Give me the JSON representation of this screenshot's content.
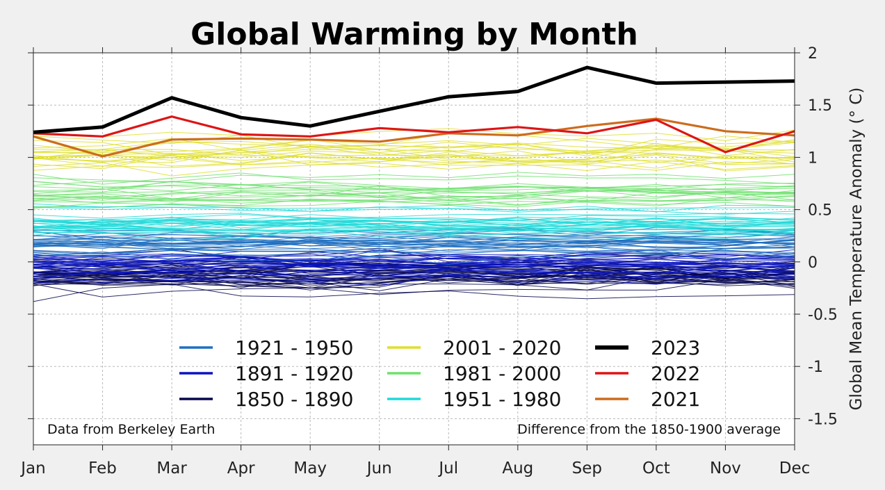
{
  "chart_data": {
    "type": "line",
    "title": "Global Warming by Month",
    "ylabel": "Global Mean Temperature Anomaly (° C)",
    "xlabel": "",
    "categories": [
      "Jan",
      "Feb",
      "Mar",
      "Apr",
      "May",
      "Jun",
      "Jul",
      "Aug",
      "Sep",
      "Oct",
      "Nov",
      "Dec"
    ],
    "ylim": [
      -1.75,
      2.0
    ],
    "yticks": [
      2,
      1.5,
      1,
      0.5,
      0,
      -0.5,
      -1,
      -1.5
    ],
    "ytick_labels": [
      "2",
      "1.5",
      "1",
      "0.5",
      "0",
      "-0.5",
      "-1",
      "-1.5"
    ],
    "y_axis_side": "right",
    "grid": true,
    "legend_placement": "lower-center",
    "annotations": {
      "left": "Data from Berkeley Earth",
      "right": "Difference from the 1850-1900 average"
    },
    "legend": [
      {
        "label": "1921 - 1950",
        "color": "#1f6fc0",
        "bold": false
      },
      {
        "label": "1891 - 1920",
        "color": "#0a14c0",
        "bold": false
      },
      {
        "label": "1850 - 1890",
        "color": "#06064d",
        "bold": false
      },
      {
        "label": "2001 - 2020",
        "color": "#dede2a",
        "bold": false
      },
      {
        "label": "1981 - 2000",
        "color": "#6ee06e",
        "bold": false
      },
      {
        "label": "1951 - 1980",
        "color": "#20d8d8",
        "bold": false
      },
      {
        "label": "2023",
        "color": "#000000",
        "bold": true
      },
      {
        "label": "2022",
        "color": "#dd1515",
        "bold": false
      },
      {
        "label": "2021",
        "color": "#cc6c1c",
        "bold": false
      }
    ],
    "series": [
      {
        "name": "2023",
        "color": "#000000",
        "values": [
          1.24,
          1.29,
          1.57,
          1.38,
          1.3,
          1.44,
          1.58,
          1.63,
          1.86,
          1.71,
          1.72,
          1.73
        ]
      },
      {
        "name": "2022",
        "color": "#dd1515",
        "values": [
          1.23,
          1.2,
          1.39,
          1.22,
          1.2,
          1.28,
          1.24,
          1.29,
          1.23,
          1.36,
          1.05,
          1.25
        ]
      },
      {
        "name": "2021",
        "color": "#cc6c1c",
        "values": [
          1.2,
          1.01,
          1.17,
          1.18,
          1.17,
          1.15,
          1.23,
          1.21,
          1.3,
          1.37,
          1.25,
          1.21
        ]
      }
    ],
    "background_bands": [
      {
        "name": "2001 - 2020",
        "color": "#dede2a",
        "count": 20,
        "center": 1.02,
        "spread": 0.28
      },
      {
        "name": "1981 - 2000",
        "color": "#6ee06e",
        "count": 20,
        "center": 0.68,
        "spread": 0.2
      },
      {
        "name": "1951 - 1980",
        "color": "#20d8d8",
        "count": 30,
        "center": 0.38,
        "spread": 0.17
      },
      {
        "name": "1921 - 1950",
        "color": "#1f6fc0",
        "count": 30,
        "center": 0.17,
        "spread": 0.17
      },
      {
        "name": "1891 - 1920",
        "color": "#0a14c0",
        "count": 30,
        "center": -0.02,
        "spread": 0.2
      },
      {
        "name": "1850 - 1890",
        "color": "#06064d",
        "count": 41,
        "center": -0.12,
        "spread": 0.26
      }
    ]
  }
}
